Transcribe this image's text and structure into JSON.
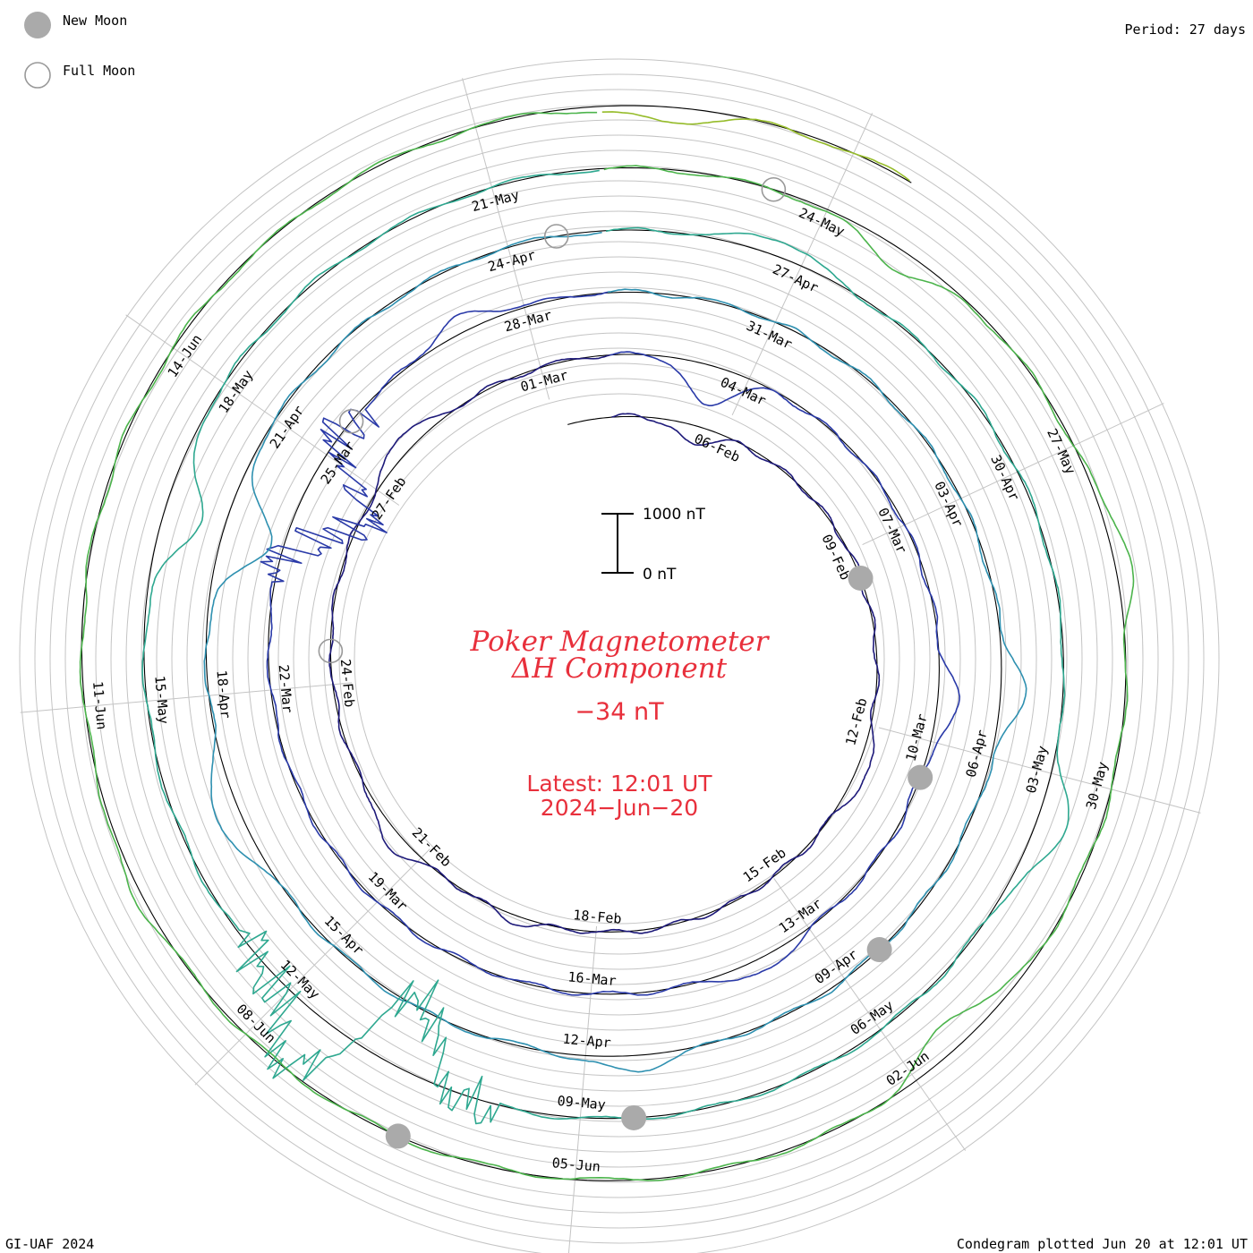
{
  "legend": {
    "new_moon_label": "New Moon",
    "full_moon_label": "Full Moon"
  },
  "period_label": "Period: 27 days",
  "scale_bar": {
    "top_label": "1000 nT",
    "bottom_label": "0 nT"
  },
  "footer": {
    "left": "GI-UAF 2024",
    "right": "Condegram plotted Jun 20 at 12:01 UT"
  },
  "colors": {
    "title": "#e8303c",
    "moon_fill": "#aaaaaa",
    "moon_ring": "#999999",
    "grid": "#c4c4c4",
    "series": [
      "#000000",
      "#1e1a7a",
      "#2a3aa8",
      "#2e90b0",
      "#2ea890",
      "#4cb44c",
      "#96bc2a",
      "#b8a81a",
      "#c47a1a",
      "#c4281a"
    ]
  },
  "chart_data": {
    "type": "condegram (polar spiral line)",
    "title_line1": "Poker Magnetometer",
    "title_line2": "ΔH Component",
    "current_value": "−34 nT",
    "latest_label": "Latest: 12:01 UT",
    "latest_date": "2024−Jun−20",
    "period_days": 27,
    "start_date": "2024-02-04",
    "end_date": "2024-06-20T12:01",
    "y_unit": "nT",
    "scale_bar_nT": [
      0,
      1000
    ],
    "date_labels": [
      "06-Feb",
      "09-Feb",
      "12-Feb",
      "15-Feb",
      "18-Feb",
      "21-Feb",
      "24-Feb",
      "27-Feb",
      "01-Mar",
      "04-Mar",
      "07-Mar",
      "10-Mar",
      "13-Mar",
      "16-Mar",
      "19-Mar",
      "22-Mar",
      "25-Mar",
      "28-Mar",
      "31-Mar",
      "03-Apr",
      "06-Apr",
      "09-Apr",
      "12-Apr",
      "15-Apr",
      "18-Apr",
      "21-Apr",
      "24-Apr",
      "27-Apr",
      "30-Apr",
      "03-May",
      "06-May",
      "09-May",
      "12-May",
      "15-May",
      "18-May",
      "21-May",
      "24-May",
      "27-May",
      "30-May",
      "02-Jun",
      "05-Jun",
      "08-Jun",
      "11-Jun",
      "14-Jun"
    ],
    "new_moons": [
      "2024-02-09",
      "2024-03-10",
      "2024-04-08",
      "2024-05-08",
      "2024-06-06"
    ],
    "full_moons": [
      "2024-02-24",
      "2024-03-25",
      "2024-04-24",
      "2024-05-23"
    ],
    "disturbances": [
      {
        "date": "2024-02-05T12:00",
        "delta_nT": -300
      },
      {
        "date": "2024-02-12T18:00",
        "delta_nT": 220
      },
      {
        "date": "2024-02-19T06:00",
        "delta_nT": 130
      },
      {
        "date": "2024-02-21T12:00",
        "delta_nT": 260
      },
      {
        "date": "2024-02-27T18:00",
        "delta_nT": 280
      },
      {
        "date": "2024-03-03T12:00",
        "delta_nT": -650
      },
      {
        "date": "2024-03-09T12:00",
        "delta_nT": 350
      },
      {
        "date": "2024-03-13T18:00",
        "delta_nT": 260
      },
      {
        "date": "2024-03-24T12:00",
        "delta_nT": -1100
      },
      {
        "date": "2024-03-27T06:00",
        "delta_nT": 260
      },
      {
        "date": "2024-04-05T06:00",
        "delta_nT": 380
      },
      {
        "date": "2024-04-11T12:00",
        "delta_nT": 260
      },
      {
        "date": "2024-04-16T18:00",
        "delta_nT": 450
      },
      {
        "date": "2024-04-19T18:00",
        "delta_nT": -800
      },
      {
        "date": "2024-04-26T18:00",
        "delta_nT": 280
      },
      {
        "date": "2024-05-03T12:00",
        "delta_nT": 500
      },
      {
        "date": "2024-05-11T00:00",
        "delta_nT": -1400
      },
      {
        "date": "2024-05-11T12:00",
        "delta_nT": 1500
      },
      {
        "date": "2024-05-16T18:00",
        "delta_nT": -620
      },
      {
        "date": "2024-05-24T18:00",
        "delta_nT": -330
      },
      {
        "date": "2024-05-28T00:00",
        "delta_nT": 250
      },
      {
        "date": "2024-06-01T12:00",
        "delta_nT": -450
      },
      {
        "date": "2024-06-09T12:00",
        "delta_nT": 120
      },
      {
        "date": "2024-06-18T12:00",
        "delta_nT": -250
      }
    ]
  }
}
